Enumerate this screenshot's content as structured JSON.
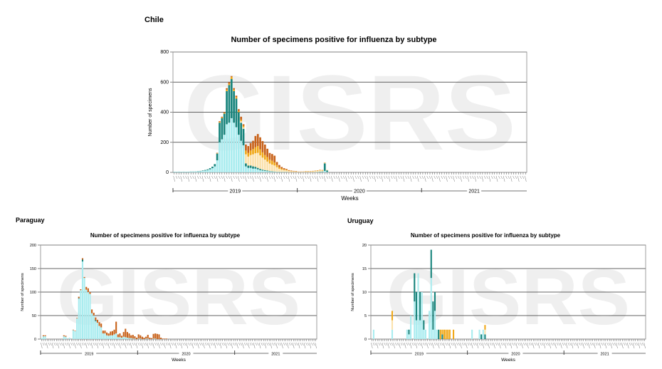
{
  "colors": {
    "s1": "#a9ecef",
    "s2": "#17847c",
    "s3": "#fbe2ad",
    "s4": "#f0a818",
    "s5": "#c8621a"
  },
  "watermark": "GISRS",
  "chart_data": [
    {
      "type": "bar",
      "stacked": true,
      "country": "Chile",
      "title": "Number of specimens positive for influenza by subtype",
      "xlabel": "Weeks",
      "ylabel": "Number of specimens",
      "ylim": [
        0,
        800
      ],
      "yticks": [
        0,
        200,
        400,
        600,
        800
      ],
      "weeks": 148,
      "years": [
        "2019",
        "2020",
        "2021"
      ],
      "series": [
        {
          "key": "s1",
          "values": [
            3,
            3,
            4,
            3,
            4,
            3,
            4,
            5,
            5,
            6,
            6,
            8,
            10,
            12,
            15,
            20,
            28,
            40,
            80,
            200,
            220,
            250,
            320,
            330,
            360,
            330,
            300,
            250,
            210,
            180,
            40,
            30,
            30,
            25,
            25,
            20,
            15,
            12,
            10,
            8,
            6,
            5,
            4,
            3,
            3,
            2,
            2,
            2,
            1,
            1,
            1,
            1,
            1,
            1,
            1,
            1,
            1,
            1,
            1,
            2,
            2,
            3,
            3,
            10,
            3
          ]
        },
        {
          "key": "s2",
          "values": [
            1,
            1,
            1,
            1,
            1,
            1,
            1,
            1,
            1,
            1,
            2,
            2,
            3,
            4,
            5,
            8,
            10,
            15,
            45,
            130,
            140,
            140,
            220,
            250,
            260,
            210,
            190,
            150,
            120,
            110,
            20,
            15,
            15,
            15,
            12,
            10,
            8,
            6,
            5,
            4,
            3,
            2,
            2,
            1,
            1,
            1,
            1,
            1,
            0,
            0,
            0,
            0,
            0,
            0,
            0,
            0,
            0,
            0,
            0,
            0,
            1,
            2,
            3,
            50,
            10
          ]
        },
        {
          "key": "s3",
          "values": [
            0,
            0,
            0,
            0,
            0,
            0,
            0,
            0,
            0,
            0,
            0,
            0,
            0,
            0,
            0,
            0,
            0,
            0,
            0,
            0,
            0,
            0,
            0,
            0,
            0,
            0,
            0,
            0,
            10,
            10,
            60,
            60,
            70,
            80,
            90,
            100,
            90,
            80,
            70,
            60,
            50,
            45,
            40,
            30,
            20,
            15,
            12,
            10,
            8,
            6,
            5,
            4,
            3,
            3,
            4,
            4,
            5,
            5,
            6,
            6,
            7,
            8,
            6,
            3,
            2
          ]
        },
        {
          "key": "s4",
          "values": [
            0,
            0,
            0,
            0,
            0,
            0,
            0,
            0,
            0,
            0,
            0,
            0,
            0,
            0,
            0,
            0,
            0,
            0,
            2,
            5,
            5,
            5,
            10,
            10,
            15,
            10,
            10,
            8,
            10,
            10,
            25,
            25,
            30,
            35,
            40,
            45,
            40,
            35,
            30,
            30,
            25,
            25,
            20,
            15,
            10,
            8,
            5,
            5,
            3,
            2,
            2,
            2,
            1,
            1,
            1,
            2,
            2,
            2,
            2,
            3,
            3,
            3,
            3,
            2,
            1
          ]
        },
        {
          "key": "s5",
          "values": [
            0,
            0,
            0,
            0,
            0,
            0,
            0,
            0,
            0,
            0,
            0,
            0,
            0,
            0,
            0,
            0,
            0,
            0,
            3,
            5,
            5,
            5,
            10,
            10,
            5,
            10,
            10,
            12,
            20,
            10,
            40,
            45,
            50,
            55,
            75,
            80,
            80,
            75,
            70,
            55,
            45,
            45,
            45,
            20,
            15,
            10,
            8,
            5,
            3,
            3,
            2,
            2,
            1,
            1,
            1,
            1,
            1,
            1,
            1,
            1,
            1,
            1,
            1,
            1,
            0
          ]
        }
      ]
    },
    {
      "type": "bar",
      "stacked": true,
      "country": "Paraguay",
      "title": "Number of specimens positive for influenza by subtype",
      "xlabel": "Weeks",
      "ylabel": "Number of specimens",
      "ylim": [
        0,
        200
      ],
      "yticks": [
        0,
        50,
        100,
        150,
        200
      ],
      "weeks": 148,
      "years": [
        "2019",
        "2020",
        "2021"
      ],
      "series": [
        {
          "key": "s1",
          "values": [
            2,
            6,
            6,
            0,
            0,
            0,
            0,
            0,
            0,
            0,
            0,
            0,
            6,
            5,
            0,
            3,
            0,
            19,
            17,
            44,
            86,
            104,
            165,
            130,
            105,
            100,
            96,
            55,
            50,
            38,
            35,
            28,
            25,
            12,
            12,
            8,
            7,
            8,
            8,
            10,
            12,
            4,
            4,
            3,
            5,
            4,
            3,
            2,
            2,
            1,
            1,
            0,
            1,
            1,
            0,
            0,
            1,
            1,
            0,
            0,
            1,
            1,
            0,
            0,
            0,
            0,
            0,
            0
          ]
        },
        {
          "key": "s2",
          "values": [
            0,
            0,
            0,
            0,
            0,
            0,
            0,
            0,
            0,
            0,
            0,
            0,
            0,
            0,
            0,
            0,
            0,
            0,
            0,
            0,
            1,
            0,
            4,
            0,
            0,
            0,
            0,
            0,
            0,
            2,
            0,
            0,
            0,
            0,
            0,
            0,
            0,
            0,
            0,
            0,
            0,
            0,
            0,
            0,
            0,
            0,
            0,
            0,
            0,
            0,
            0,
            0,
            0,
            0,
            0,
            0,
            0,
            0,
            0,
            0,
            0,
            0,
            0,
            0,
            0,
            0,
            0,
            0
          ]
        },
        {
          "key": "s5",
          "values": [
            0,
            2,
            2,
            0,
            0,
            0,
            0,
            0,
            0,
            0,
            0,
            0,
            2,
            2,
            0,
            0,
            0,
            1,
            1,
            1,
            3,
            2,
            3,
            2,
            6,
            8,
            4,
            8,
            6,
            6,
            6,
            8,
            8,
            6,
            6,
            6,
            5,
            8,
            9,
            10,
            25,
            6,
            8,
            4,
            10,
            18,
            12,
            10,
            6,
            8,
            5,
            3,
            9,
            7,
            5,
            3,
            4,
            8,
            3,
            2,
            10,
            11,
            11,
            10,
            3,
            1,
            1,
            1
          ]
        }
      ]
    },
    {
      "type": "bar",
      "stacked": true,
      "country": "Uruguay",
      "title": "Number of specimens positive for influenza by subtype",
      "xlabel": "Weeks",
      "ylabel": "Number of specimens",
      "ylim": [
        0,
        20
      ],
      "yticks": [
        0,
        5,
        10,
        15,
        20
      ],
      "weeks": 148,
      "years": [
        "2019",
        "2020",
        "2021"
      ],
      "series": [
        {
          "key": "s1",
          "values": [
            0,
            2,
            0,
            0,
            0,
            0,
            0,
            0,
            0,
            0,
            0,
            2,
            0,
            0,
            0,
            0,
            0,
            0,
            0,
            2,
            1,
            5,
            0,
            8,
            4,
            14,
            4,
            10,
            2,
            2,
            0,
            6,
            13,
            2,
            6,
            2,
            0,
            0,
            0,
            0,
            0,
            0,
            0,
            0,
            0,
            0,
            0,
            0,
            0,
            0,
            0,
            0,
            0,
            0,
            2,
            0,
            0,
            0,
            2,
            0,
            2,
            0
          ]
        },
        {
          "key": "s2",
          "values": [
            0,
            0,
            0,
            0,
            0,
            0,
            0,
            0,
            0,
            0,
            0,
            0,
            0,
            0,
            0,
            0,
            0,
            0,
            0,
            0,
            1,
            0,
            0,
            6,
            6,
            0,
            6,
            0,
            2,
            0,
            0,
            0,
            6,
            6,
            4,
            0,
            2,
            0,
            1,
            0,
            0,
            0,
            0,
            0,
            0,
            0,
            0,
            0,
            0,
            0,
            0,
            0,
            0,
            0,
            0,
            0,
            0,
            0,
            0,
            1,
            0,
            1
          ]
        },
        {
          "key": "s3",
          "values": [
            0,
            0,
            0,
            0,
            0,
            0,
            0,
            0,
            0,
            0,
            0,
            2,
            0,
            0,
            0,
            0,
            0,
            0,
            0,
            0,
            0,
            0,
            0,
            0,
            0,
            0,
            0,
            0,
            0,
            0,
            0,
            0,
            0,
            0,
            0,
            0,
            0,
            0,
            0,
            0,
            0,
            0,
            0,
            0,
            0,
            0,
            0,
            0,
            0,
            0,
            0,
            0,
            0,
            0,
            0,
            0,
            0,
            0,
            0,
            0,
            0,
            1
          ]
        },
        {
          "key": "s4",
          "values": [
            0,
            0,
            0,
            0,
            0,
            0,
            0,
            0,
            0,
            0,
            0,
            2,
            0,
            0,
            0,
            0,
            0,
            0,
            0,
            0,
            0,
            0,
            0,
            0,
            0,
            0,
            0,
            0,
            0,
            0,
            0,
            0,
            0,
            0,
            0,
            0,
            0,
            2,
            1,
            2,
            2,
            2,
            2,
            0,
            2,
            0,
            0,
            0,
            0,
            0,
            0,
            0,
            0,
            0,
            0,
            0,
            0,
            0,
            0,
            0,
            0,
            1
          ]
        }
      ]
    }
  ]
}
